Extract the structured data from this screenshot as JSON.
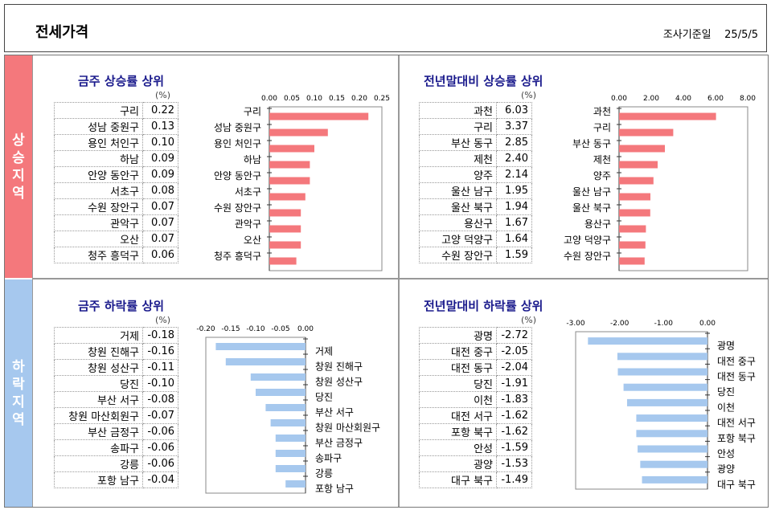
{
  "header": {
    "title": "전세가격",
    "date_label": "조사기준일",
    "date": "25/5/5"
  },
  "sidebar": {
    "rise_label": [
      "상",
      "승",
      "지",
      "역"
    ],
    "fall_label": [
      "하",
      "락",
      "지",
      "역"
    ]
  },
  "unit": "(%)",
  "chart_data": [
    {
      "id": "weekly-rise",
      "type": "bar",
      "title": "금주 상승률 상위",
      "categories": [
        "구리",
        "성남 중원구",
        "용인 처인구",
        "하남",
        "안양 동안구",
        "서초구",
        "수원 장안구",
        "관악구",
        "오산",
        "청주 흥덕구"
      ],
      "values": [
        0.22,
        0.13,
        0.1,
        0.09,
        0.09,
        0.08,
        0.07,
        0.07,
        0.07,
        0.06
      ],
      "display": [
        "0.22",
        "0.13",
        "0.10",
        "0.09",
        "0.09",
        "0.08",
        "0.07",
        "0.07",
        "0.07",
        "0.06"
      ],
      "ticks": [
        "0.00",
        "0.05",
        "0.10",
        "0.15",
        "0.20",
        "0.25"
      ],
      "xlim": [
        0,
        0.25
      ],
      "color": "#f4787c"
    },
    {
      "id": "ytd-rise",
      "type": "bar",
      "title": "전년말대비 상승률 상위",
      "categories": [
        "과천",
        "구리",
        "부산 동구",
        "제천",
        "양주",
        "울산 남구",
        "울산 북구",
        "용산구",
        "고양 덕양구",
        "수원 장안구"
      ],
      "values": [
        6.03,
        3.37,
        2.85,
        2.4,
        2.14,
        1.95,
        1.94,
        1.67,
        1.64,
        1.59
      ],
      "display": [
        "6.03",
        "3.37",
        "2.85",
        "2.40",
        "2.14",
        "1.95",
        "1.94",
        "1.67",
        "1.64",
        "1.59"
      ],
      "ticks": [
        "0.00",
        "2.00",
        "4.00",
        "6.00",
        "8.00"
      ],
      "xlim": [
        0,
        8
      ],
      "color": "#f4787c"
    },
    {
      "id": "weekly-fall",
      "type": "bar",
      "title": "금주 하락률 상위",
      "categories": [
        "거제",
        "창원 진해구",
        "창원 성산구",
        "당진",
        "부산 서구",
        "창원 마산회원구",
        "부산 금정구",
        "송파구",
        "강릉",
        "포항 남구"
      ],
      "values": [
        -0.18,
        -0.16,
        -0.11,
        -0.1,
        -0.08,
        -0.07,
        -0.06,
        -0.06,
        -0.06,
        -0.04
      ],
      "display": [
        "-0.18",
        "-0.16",
        "-0.11",
        "-0.10",
        "-0.08",
        "-0.07",
        "-0.06",
        "-0.06",
        "-0.06",
        "-0.04"
      ],
      "ticks": [
        "-0.20",
        "-0.15",
        "-0.10",
        "-0.05",
        "0.00"
      ],
      "xlim": [
        -0.2,
        0
      ],
      "color": "#a6c8ee"
    },
    {
      "id": "ytd-fall",
      "type": "bar",
      "title": "전년말대비 하락률 상위",
      "categories": [
        "광명",
        "대전 중구",
        "대전 동구",
        "당진",
        "이천",
        "대전 서구",
        "포항 북구",
        "안성",
        "광양",
        "대구 북구"
      ],
      "values": [
        -2.72,
        -2.05,
        -2.04,
        -1.91,
        -1.83,
        -1.62,
        -1.62,
        -1.59,
        -1.53,
        -1.49
      ],
      "display": [
        "-2.72",
        "-2.05",
        "-2.04",
        "-1.91",
        "-1.83",
        "-1.62",
        "-1.62",
        "-1.59",
        "-1.53",
        "-1.49"
      ],
      "ticks": [
        "-3.00",
        "-2.00",
        "-1.00",
        "0.00"
      ],
      "xlim": [
        -3,
        0
      ],
      "color": "#a6c8ee"
    }
  ]
}
